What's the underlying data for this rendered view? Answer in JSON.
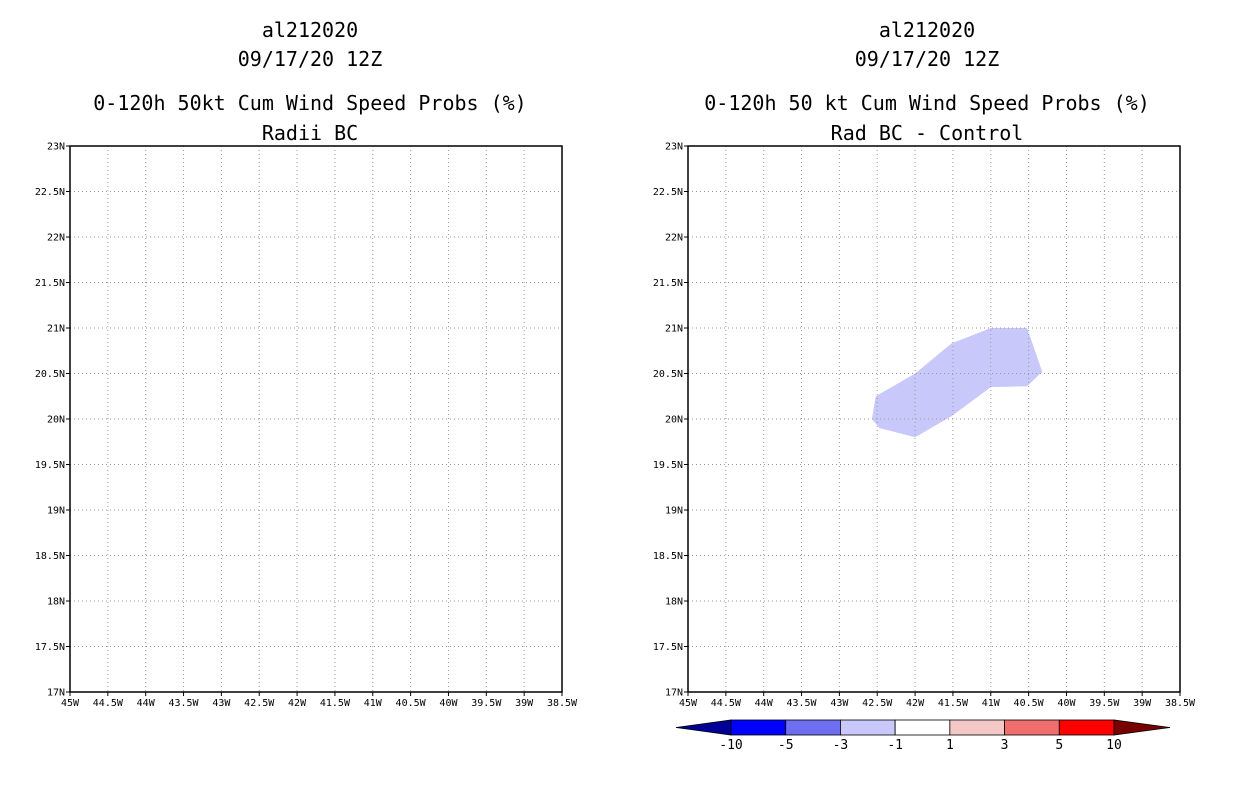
{
  "panels": [
    {
      "storm_id": "al212020",
      "datetime": "09/17/20 12Z",
      "title": "0-120h 50kt Cum Wind Speed Probs (%)",
      "subtitle": "Radii BC"
    },
    {
      "storm_id": "al212020",
      "datetime": "09/17/20 12Z",
      "title": "0-120h 50 kt Cum Wind Speed Probs (%)",
      "subtitle": "Rad BC - Control"
    }
  ],
  "chart_data": [
    {
      "type": "map",
      "xlim": [
        -45,
        -38.5
      ],
      "ylim": [
        17,
        23
      ],
      "x_ticks": [
        -45,
        -44.5,
        -44,
        -43.5,
        -43,
        -42.5,
        -42,
        -41.5,
        -41,
        -40.5,
        -40,
        -39.5,
        -39,
        -38.5
      ],
      "x_tick_labels": [
        "45W",
        "44.5W",
        "44W",
        "43.5W",
        "43W",
        "42.5W",
        "42W",
        "41.5W",
        "41W",
        "40.5W",
        "40W",
        "39.5W",
        "39W",
        "38.5W"
      ],
      "y_ticks": [
        17,
        17.5,
        18,
        18.5,
        19,
        19.5,
        20,
        20.5,
        21,
        21.5,
        22,
        22.5,
        23
      ],
      "y_tick_labels": [
        "17N",
        "17.5N",
        "18N",
        "18.5N",
        "19N",
        "19.5N",
        "20N",
        "20.5N",
        "21N",
        "21.5N",
        "22N",
        "22.5N",
        "23N"
      ],
      "grid": true,
      "regions": []
    },
    {
      "type": "map",
      "xlim": [
        -45,
        -38.5
      ],
      "ylim": [
        17,
        23
      ],
      "x_ticks": [
        -45,
        -44.5,
        -44,
        -43.5,
        -43,
        -42.5,
        -42,
        -41.5,
        -41,
        -40.5,
        -40,
        -39.5,
        -39,
        -38.5
      ],
      "x_tick_labels": [
        "45W",
        "44.5W",
        "44W",
        "43.5W",
        "43W",
        "42.5W",
        "42W",
        "41.5W",
        "41W",
        "40.5W",
        "40W",
        "39.5W",
        "39W",
        "38.5W"
      ],
      "y_ticks": [
        17,
        17.5,
        18,
        18.5,
        19,
        19.5,
        20,
        20.5,
        21,
        21.5,
        22,
        22.5,
        23
      ],
      "y_tick_labels": [
        "17N",
        "17.5N",
        "18N",
        "18.5N",
        "19N",
        "19.5N",
        "20N",
        "20.5N",
        "21N",
        "21.5N",
        "22N",
        "22.5N",
        "23N"
      ],
      "grid": true,
      "regions": [
        {
          "value_range": [
            -3,
            -1
          ],
          "color": "#c8c8fa",
          "polygon_lonlat": [
            [
              -42.52,
              20.25
            ],
            [
              -42.0,
              20.5
            ],
            [
              -41.52,
              20.83
            ],
            [
              -41.0,
              21.0
            ],
            [
              -40.52,
              21.0
            ],
            [
              -40.32,
              20.52
            ],
            [
              -40.52,
              20.36
            ],
            [
              -41.0,
              20.35
            ],
            [
              -41.52,
              20.03
            ],
            [
              -42.0,
              19.8
            ],
            [
              -42.47,
              19.9
            ],
            [
              -42.57,
              20.0
            ]
          ]
        }
      ],
      "colorbar": {
        "levels": [
          "-10",
          "-5",
          "-3",
          "-1",
          "1",
          "3",
          "5",
          "10"
        ],
        "colors": [
          "#000096",
          "#0000ff",
          "#6e6ef0",
          "#c8c8fa",
          "#ffffff",
          "#f5c8c8",
          "#f06e6e",
          "#ff0000",
          "#780000"
        ]
      }
    }
  ]
}
